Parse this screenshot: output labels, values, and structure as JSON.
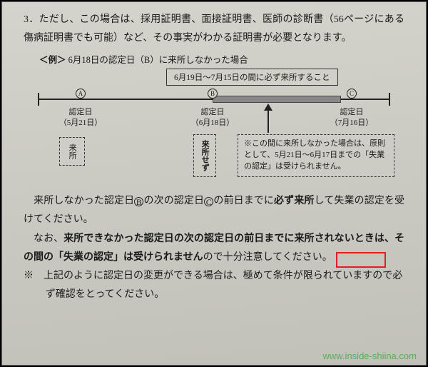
{
  "para1": {
    "num": "3．",
    "t1": "ただし、この場合は、採用証明書、面接証明書、医師の診断書（56ページにある傷病証明書でも可能）など、その事実がわかる証明書が必要となります。"
  },
  "example": {
    "tag": "＜例＞",
    "title": "6月18日の認定日（B）に来所しなかった場合"
  },
  "diagram": {
    "banner": "6月19日〜7月15日の間に必ず来所すること",
    "nodeA": {
      "mark": "A",
      "line1": "認定日",
      "line2": "（5月21日）"
    },
    "nodeB": {
      "mark": "B",
      "line1": "認定日",
      "line2": "（6月18日）"
    },
    "nodeC": {
      "mark": "C",
      "line1": "認定日",
      "line2": "（7月16日）"
    },
    "boxVisit": "来所",
    "boxNoVisit": "来所せず",
    "boxNote": "※この間に来所しなかった場合は、原則として、5月21日〜6月17日までの「失業の認定」は受けられません。"
  },
  "para2": {
    "pre": "　来所しなかった認定日",
    "b": "B",
    "mid": "の次の認定日",
    "c": "C",
    "post1": "の前日までに",
    "strong": "必ず来所",
    "post2": "して失業の認定を受けてください。"
  },
  "para3": {
    "pre": "　なお、",
    "bold": "来所できなかった認定日の次の認定日の前日までに来所されないときは、その間の「失業の認定」は受けられません",
    "post": "ので十分注意してください。"
  },
  "para4": {
    "mark": "※",
    "text": "上記のように認定日の変更ができる場合は、極めて条件が限られていますので必ず確認をとってください。"
  },
  "watermark": "www.inside-shiina.com"
}
